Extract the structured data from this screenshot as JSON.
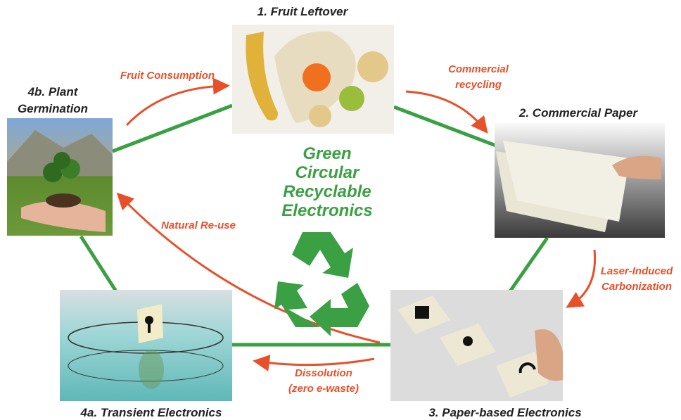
{
  "center_title": [
    "Green",
    "Circular",
    "Recyclable",
    "Electronics"
  ],
  "nodes": [
    {
      "label": [
        "1. Fruit Leftover"
      ]
    },
    {
      "label": [
        "2. Commercial Paper"
      ]
    },
    {
      "label": [
        "3. Paper-based  Electronics"
      ]
    },
    {
      "label": [
        "4a. Transient Electronics"
      ]
    },
    {
      "label": [
        "4b. Plant",
        "Germination"
      ]
    }
  ],
  "edges": [
    {
      "label": [
        "Fruit Consumption"
      ]
    },
    {
      "label": [
        "Commercial",
        "recycling"
      ]
    },
    {
      "label": [
        "Laser-Induced",
        "Carbonization"
      ]
    },
    {
      "label": [
        "Dissolution",
        "(zero e-waste)"
      ]
    },
    {
      "label": [
        "Natural Re-use"
      ]
    }
  ]
}
